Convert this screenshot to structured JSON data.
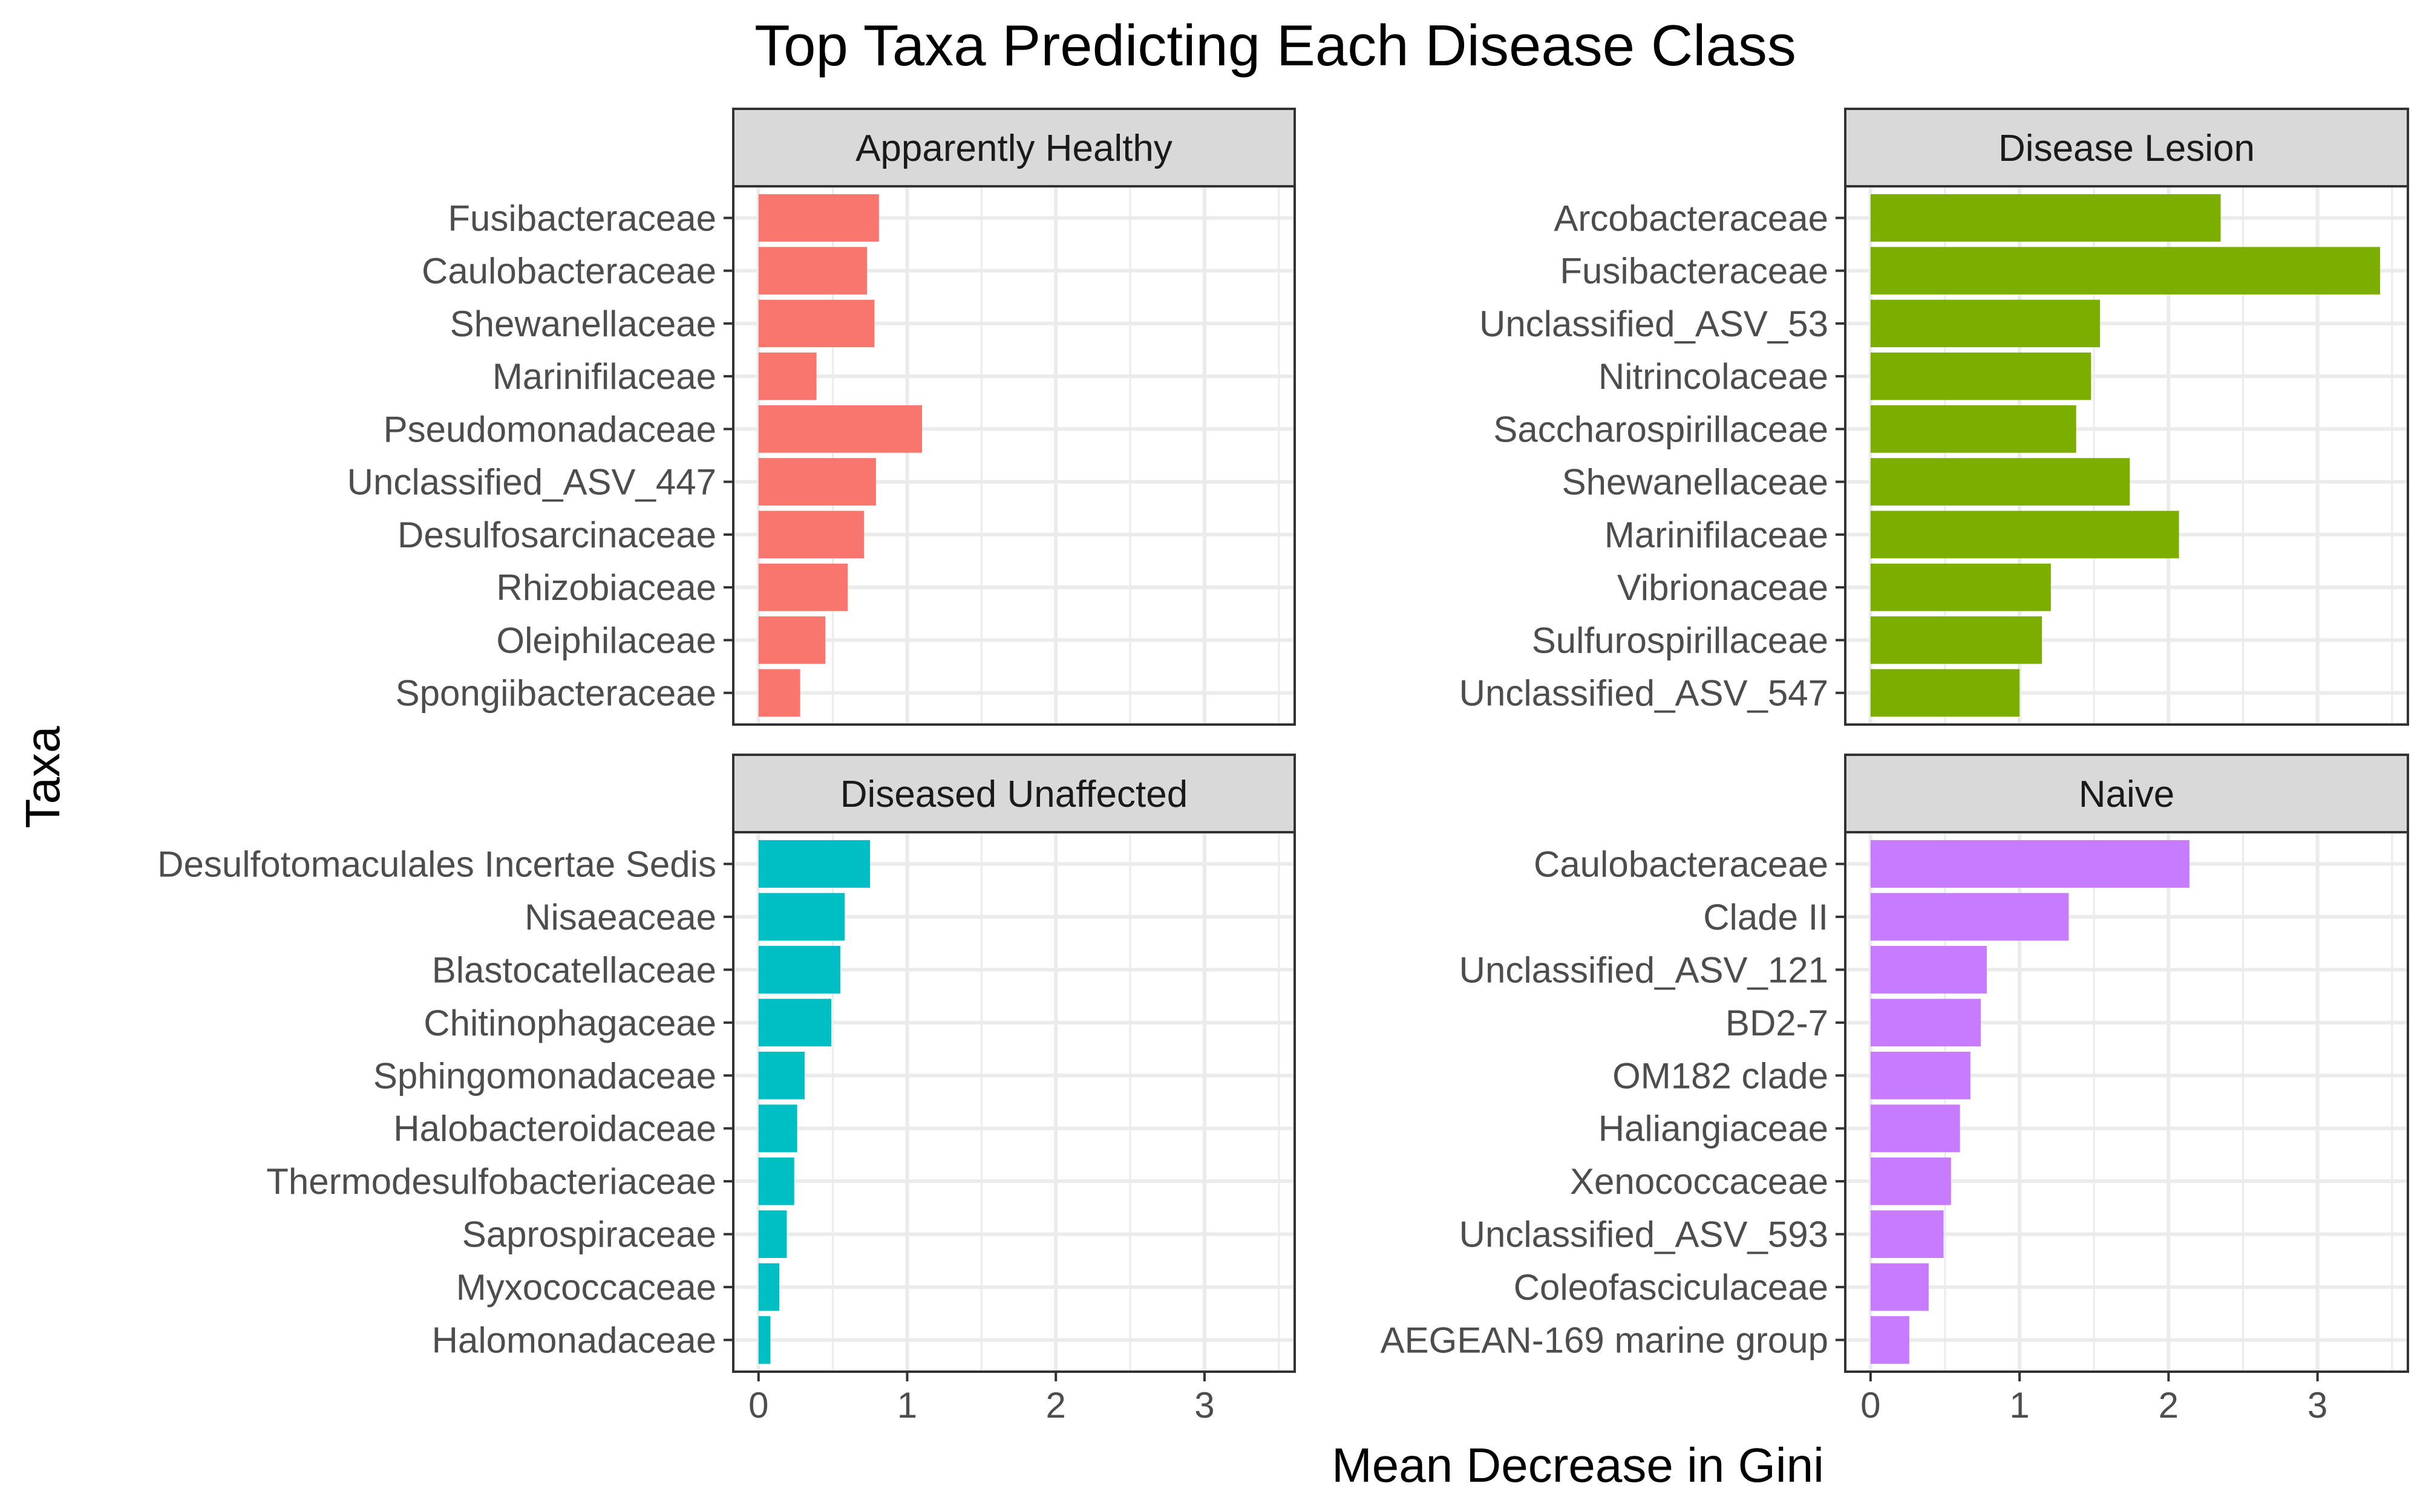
{
  "chart_data": {
    "type": "bar",
    "orientation": "horizontal",
    "layout": "facet-2x2",
    "title": "Top Taxa Predicting Each Disease Class",
    "xlabel": "Mean Decrease in Gini",
    "ylabel": "Taxa",
    "xlim": [
      0,
      3.55
    ],
    "xticks": [
      0,
      1,
      2,
      3
    ],
    "grid": true,
    "legend": "none",
    "panels": [
      {
        "name": "Apparently Healthy",
        "color": "#F8766D",
        "categories": [
          "Fusibacteraceae",
          "Caulobacteraceae",
          "Shewanellaceae",
          "Marinifilaceae",
          "Pseudomonadaceae",
          "Unclassified_ASV_447",
          "Desulfosarcinaceae",
          "Rhizobiaceae",
          "Oleiphilaceae",
          "Spongiibacteraceae"
        ],
        "values": [
          0.81,
          0.73,
          0.78,
          0.39,
          1.1,
          0.79,
          0.71,
          0.6,
          0.45,
          0.28
        ]
      },
      {
        "name": "Disease Lesion",
        "color": "#7CAE00",
        "categories": [
          "Arcobacteraceae",
          "Fusibacteraceae",
          "Unclassified_ASV_53",
          "Nitrincolaceae",
          "Saccharospirillaceae",
          "Shewanellaceae",
          "Marinifilaceae",
          "Vibrionaceae",
          "Sulfurospirillaceae",
          "Unclassified_ASV_547"
        ],
        "values": [
          2.35,
          3.42,
          1.54,
          1.48,
          1.38,
          1.74,
          2.07,
          1.21,
          1.15,
          1.0
        ]
      },
      {
        "name": "Diseased Unaffected",
        "color": "#00BFC4",
        "categories": [
          "Desulfotomaculales Incertae Sedis",
          "Nisaeaceae",
          "Blastocatellaceae",
          "Chitinophagaceae",
          "Sphingomonadaceae",
          "Halobacteroidaceae",
          "Thermodesulfobacteriaceae",
          "Saprospiraceae",
          "Myxococcaceae",
          "Halomonadaceae"
        ],
        "values": [
          0.75,
          0.58,
          0.55,
          0.49,
          0.31,
          0.26,
          0.24,
          0.19,
          0.14,
          0.08
        ]
      },
      {
        "name": "Naive",
        "color": "#C77CFF",
        "categories": [
          "Caulobacteraceae",
          "Clade II",
          "Unclassified_ASV_121",
          "BD2-7",
          "OM182 clade",
          "Haliangiaceae",
          "Xenococcaceae",
          "Unclassified_ASV_593",
          "Coleofasciculaceae",
          "AEGEAN-169 marine group"
        ],
        "values": [
          2.14,
          1.33,
          0.78,
          0.74,
          0.67,
          0.6,
          0.54,
          0.49,
          0.39,
          0.26
        ]
      }
    ]
  }
}
